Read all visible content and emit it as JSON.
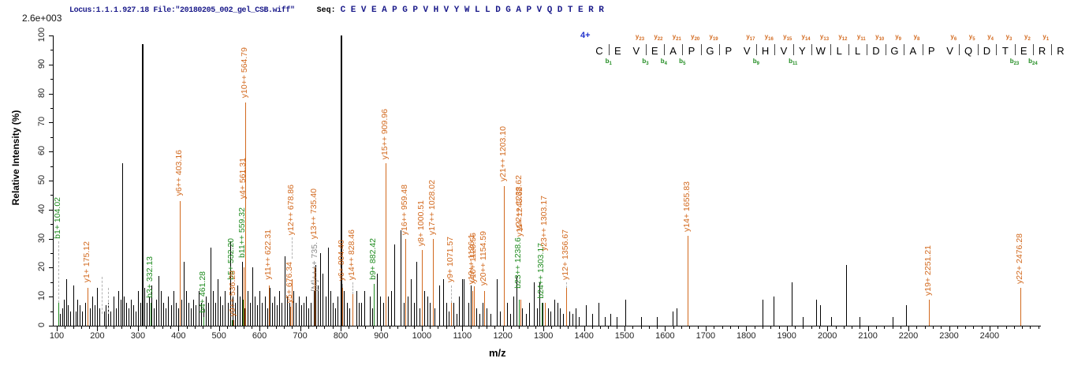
{
  "header": {
    "locus_file": "Locus:1.1.1.927.18 File:\"20180205_002_gel_CSB.wiff\"",
    "seq_label": "Seq:",
    "sequence": "CEVEAPGPVHVYWLLDGAPVQDTERR",
    "max_intensity": "2.6e+003"
  },
  "colors": {
    "y_ion": "#d2691e",
    "b_ion": "#1f8b1f",
    "precursor": "#8a8a8a",
    "peak_black": "#000000",
    "header_navy": "#1a1a8a",
    "charge_blue": "#2233cc"
  },
  "fragment_map": {
    "charge": "4+",
    "y_ions": [
      [
        "y23",
        3
      ],
      [
        "y22",
        4
      ],
      [
        "y21",
        5
      ],
      [
        "y20",
        6
      ],
      [
        "y19",
        7
      ],
      [
        "y17",
        9
      ],
      [
        "y16",
        10
      ],
      [
        "y15",
        11
      ],
      [
        "y14",
        12
      ],
      [
        "y13",
        13
      ],
      [
        "y12",
        14
      ],
      [
        "y11",
        15
      ],
      [
        "y10",
        16
      ],
      [
        "y9",
        17
      ],
      [
        "y8",
        18
      ],
      [
        "y6",
        20
      ],
      [
        "y5",
        21
      ],
      [
        "y4",
        22
      ],
      [
        "y3",
        23
      ],
      [
        "y2",
        24
      ],
      [
        "y1",
        25
      ]
    ],
    "b_ions": [
      [
        "b1",
        1
      ],
      [
        "b3",
        3
      ],
      [
        "b4",
        4
      ],
      [
        "b5",
        5
      ],
      [
        "b9",
        9
      ],
      [
        "b11",
        11
      ],
      [
        "b23",
        23
      ],
      [
        "b24",
        24
      ]
    ],
    "cleavage_gaps": [
      1,
      3,
      4,
      5,
      6,
      7,
      9,
      10,
      11,
      12,
      13,
      14,
      15,
      16,
      17,
      18,
      20,
      21,
      22,
      23,
      24,
      25
    ]
  },
  "chart_data": {
    "type": "bar",
    "subtype": "ms2-mass-spectrum",
    "title": "",
    "xlabel": "m/z",
    "ylabel": "Relative Intensity (%)",
    "xlim": [
      100,
      2527
    ],
    "ylim": [
      0,
      100
    ],
    "x_major_ticks": [
      100,
      200,
      300,
      400,
      500,
      600,
      700,
      800,
      900,
      1000,
      1100,
      1200,
      1300,
      1400,
      1500,
      1600,
      1700,
      1800,
      1900,
      2000,
      2100,
      2200,
      2300,
      2400
    ],
    "y_major_ticks": [
      0,
      10,
      20,
      30,
      40,
      50,
      60,
      70,
      80,
      90,
      100
    ],
    "base_peak_intensity": "2.6e+003",
    "labeled_peaks": [
      {
        "label": "b1+ 104.02",
        "mz": 104.02,
        "intensity": 8,
        "series": "b",
        "label_base": 29,
        "dash_from": 8
      },
      {
        "label": "y1+ 175.12",
        "mz": 175.12,
        "intensity": 13,
        "series": "y",
        "label_base": 14
      },
      {
        "label": "b3+ 332.13",
        "mz": 332.13,
        "intensity": 8,
        "series": "b",
        "label_base": 8.7
      },
      {
        "label": "y6++ 403.16",
        "mz": 403.16,
        "intensity": 43,
        "series": "y",
        "label_base": 44
      },
      {
        "label": "b4+ 461.28",
        "mz": 461.28,
        "intensity": 3,
        "series": "b",
        "label_base": 3.5
      },
      {
        "label": "b5+ 532.20",
        "mz": 532.2,
        "intensity": 2,
        "series": "b",
        "label_base": 15
      },
      {
        "label": "y9++ 536.28",
        "mz": 536.28,
        "intensity": 2,
        "series": "y",
        "label_base": 2.5
      },
      {
        "label": "b11++ 559.32",
        "mz": 559.32,
        "intensity": 9,
        "series": "b",
        "label_base": 22.5
      },
      {
        "label": "y4+ 561.31",
        "mz": 561.31,
        "intensity": 20,
        "series": "y",
        "label_base": 43
      },
      {
        "label": "y10++ 564.79",
        "mz": 564.79,
        "intensity": 77,
        "series": "y",
        "label_base": 77.8
      },
      {
        "label": "y11++ 622.31",
        "mz": 622.31,
        "intensity": 14,
        "series": "y",
        "label_base": 15
      },
      {
        "label": "y5+ 676.34",
        "mz": 676.34,
        "intensity": 6.5,
        "series": "y",
        "label_base": 7
      },
      {
        "label": "y12++ 678.86",
        "mz": 678.86,
        "intensity": 16,
        "series": "y",
        "label_base": 30.5,
        "dash_from": 23
      },
      {
        "label": "[M]++++ 735.",
        "mz": 737.0,
        "intensity": 0,
        "series": "precursor",
        "label_base": 11
      },
      {
        "label": "y13++ 735.40",
        "mz": 735.4,
        "intensity": 20,
        "series": "y",
        "label_base": 29
      },
      {
        "label": "y6+ 804.40",
        "mz": 804.4,
        "intensity": 13,
        "series": "y",
        "label_base": 14.5,
        "dash_from": 13
      },
      {
        "label": "y14++ 828.46",
        "mz": 828.46,
        "intensity": 11,
        "series": "y",
        "label_base": 15,
        "dash_from": 11
      },
      {
        "label": "b9+ 882.42",
        "mz": 882.42,
        "intensity": 14.5,
        "series": "b",
        "label_base": 15
      },
      {
        "label": "y15++ 909.96",
        "mz": 909.96,
        "intensity": 56,
        "series": "y",
        "label_base": 56.5
      },
      {
        "label": "y16++ 959.48",
        "mz": 959.48,
        "intensity": 30,
        "series": "y",
        "label_base": 30.5
      },
      {
        "label": "y8+ 1000.51",
        "mz": 1000.51,
        "intensity": 26,
        "series": "y",
        "label_base": 26.5
      },
      {
        "label": "y17++ 1028.02",
        "mz": 1028.02,
        "intensity": 30,
        "series": "y",
        "label_base": 30.5
      },
      {
        "label": "y9+ 1071.57",
        "mz": 1071.57,
        "intensity": 8,
        "series": "y",
        "label_base": 14,
        "dash_from": 8
      },
      {
        "label": "y19++ 1126.1",
        "mz": 1125.0,
        "intensity": 12,
        "series": "y",
        "label_base": 13.5
      },
      {
        "label": "y10+ 1128.56",
        "mz": 1128.56,
        "intensity": 13.5,
        "series": "y",
        "label_base": 14
      },
      {
        "label": "y20++ 1154.59",
        "mz": 1154.59,
        "intensity": 12,
        "series": "y",
        "label_base": 13
      },
      {
        "label": "y21++ 1203.10",
        "mz": 1203.1,
        "intensity": 48,
        "series": "y",
        "label_base": 48.8
      },
      {
        "label": "b23++ 1238.6",
        "mz": 1238.6,
        "intensity": 9,
        "series": "b",
        "label_base": 12
      },
      {
        "label": "y11+ 1243.62",
        "mz": 1243.62,
        "intensity": 9,
        "series": "y",
        "label_base": 30
      },
      {
        "label": "y22++ 1238.62",
        "mz": 1240.5,
        "intensity": 0,
        "series": "y",
        "label_base": 32
      },
      {
        "label": "b24++ 1303.17",
        "mz": 1296.0,
        "intensity": 8,
        "series": "b",
        "label_base": 8.5
      },
      {
        "label": "y23++ 1303.17",
        "mz": 1304.0,
        "intensity": 8,
        "series": "y",
        "label_base": 25
      },
      {
        "label": "y12+ 1356.67",
        "mz": 1356.67,
        "intensity": 13,
        "series": "y",
        "label_base": 15,
        "dash_from": 13
      },
      {
        "label": "y14+ 1655.83",
        "mz": 1655.83,
        "intensity": 31,
        "series": "y",
        "label_base": 31.5
      },
      {
        "label": "y19+ 2251.21",
        "mz": 2251.21,
        "intensity": 9,
        "series": "y",
        "label_base": 9.5
      },
      {
        "label": "y22+ 2476.28",
        "mz": 2476.28,
        "intensity": 13,
        "series": "y",
        "label_base": 13.5
      }
    ],
    "ghost_dashes": [
      {
        "mz": 210,
        "from": 4,
        "to": 17
      },
      {
        "mz": 226,
        "from": 4,
        "to": 13
      }
    ],
    "background_peaks": [
      [
        108,
        4
      ],
      [
        113,
        6
      ],
      [
        118,
        9
      ],
      [
        124,
        16
      ],
      [
        128,
        7
      ],
      [
        133,
        5
      ],
      [
        141,
        14
      ],
      [
        146,
        5
      ],
      [
        151,
        9
      ],
      [
        157,
        7
      ],
      [
        163,
        5
      ],
      [
        169,
        8
      ],
      [
        181,
        6
      ],
      [
        187,
        10
      ],
      [
        193,
        7
      ],
      [
        199,
        13
      ],
      [
        205,
        6
      ],
      [
        216,
        5
      ],
      [
        221,
        7
      ],
      [
        227,
        8
      ],
      [
        233,
        5
      ],
      [
        239,
        10
      ],
      [
        245,
        6
      ],
      [
        251,
        12
      ],
      [
        257,
        9
      ],
      [
        261,
        56
      ],
      [
        266,
        10
      ],
      [
        271,
        8
      ],
      [
        277,
        6
      ],
      [
        283,
        9
      ],
      [
        289,
        7
      ],
      [
        295,
        5
      ],
      [
        301,
        12
      ],
      [
        306,
        8
      ],
      [
        310,
        97
      ],
      [
        315,
        13
      ],
      [
        321,
        8
      ],
      [
        327,
        10
      ],
      [
        333,
        14
      ],
      [
        339,
        6
      ],
      [
        345,
        9
      ],
      [
        351,
        17
      ],
      [
        357,
        12
      ],
      [
        363,
        8
      ],
      [
        369,
        6
      ],
      [
        375,
        10
      ],
      [
        381,
        7
      ],
      [
        387,
        12
      ],
      [
        393,
        8
      ],
      [
        399,
        6
      ],
      [
        407,
        9
      ],
      [
        413,
        22
      ],
      [
        419,
        12
      ],
      [
        425,
        8
      ],
      [
        431,
        6
      ],
      [
        437,
        9
      ],
      [
        443,
        7
      ],
      [
        449,
        12
      ],
      [
        455,
        8
      ],
      [
        462,
        6
      ],
      [
        468,
        10
      ],
      [
        474,
        8
      ],
      [
        479,
        27
      ],
      [
        485,
        12
      ],
      [
        491,
        8
      ],
      [
        497,
        16
      ],
      [
        503,
        10
      ],
      [
        509,
        7
      ],
      [
        515,
        12
      ],
      [
        521,
        8
      ],
      [
        527,
        29
      ],
      [
        533,
        10
      ],
      [
        539,
        8
      ],
      [
        545,
        14
      ],
      [
        551,
        10
      ],
      [
        557,
        22
      ],
      [
        563,
        6
      ],
      [
        570,
        12
      ],
      [
        576,
        8
      ],
      [
        582,
        20
      ],
      [
        588,
        10
      ],
      [
        594,
        7
      ],
      [
        600,
        12
      ],
      [
        606,
        8
      ],
      [
        613,
        10
      ],
      [
        619,
        6
      ],
      [
        625,
        13
      ],
      [
        631,
        8
      ],
      [
        637,
        10
      ],
      [
        643,
        7
      ],
      [
        649,
        12
      ],
      [
        655,
        8
      ],
      [
        661,
        24
      ],
      [
        667,
        10
      ],
      [
        673,
        8
      ],
      [
        684,
        12
      ],
      [
        690,
        8
      ],
      [
        696,
        10
      ],
      [
        702,
        7
      ],
      [
        708,
        8
      ],
      [
        714,
        10
      ],
      [
        720,
        6
      ],
      [
        726,
        8
      ],
      [
        733,
        12
      ],
      [
        738,
        21
      ],
      [
        744,
        14
      ],
      [
        750,
        25
      ],
      [
        756,
        18
      ],
      [
        762,
        10
      ],
      [
        768,
        27
      ],
      [
        774,
        12
      ],
      [
        780,
        8
      ],
      [
        786,
        6
      ],
      [
        793,
        10
      ],
      [
        800,
        100
      ],
      [
        808,
        12
      ],
      [
        815,
        8
      ],
      [
        822,
        6
      ],
      [
        830,
        10
      ],
      [
        838,
        12
      ],
      [
        845,
        8
      ],
      [
        851,
        8
      ],
      [
        859,
        12
      ],
      [
        871,
        10
      ],
      [
        877,
        6
      ],
      [
        890,
        18
      ],
      [
        897,
        10
      ],
      [
        904,
        8
      ],
      [
        917,
        10
      ],
      [
        925,
        12
      ],
      [
        932,
        28
      ],
      [
        948,
        33
      ],
      [
        955,
        8
      ],
      [
        966,
        10
      ],
      [
        973,
        16
      ],
      [
        980,
        8
      ],
      [
        986,
        22
      ],
      [
        995,
        6
      ],
      [
        1006,
        12
      ],
      [
        1013,
        10
      ],
      [
        1020,
        8
      ],
      [
        1032,
        6
      ],
      [
        1043,
        14
      ],
      [
        1052,
        16
      ],
      [
        1060,
        8
      ],
      [
        1066,
        5
      ],
      [
        1078,
        8
      ],
      [
        1085,
        4
      ],
      [
        1092,
        10
      ],
      [
        1099,
        16
      ],
      [
        1103,
        16
      ],
      [
        1114,
        8
      ],
      [
        1121,
        14
      ],
      [
        1135,
        6
      ],
      [
        1142,
        4
      ],
      [
        1149,
        8
      ],
      [
        1160,
        6
      ],
      [
        1170,
        4
      ],
      [
        1184,
        16
      ],
      [
        1192,
        5
      ],
      [
        1210,
        8
      ],
      [
        1218,
        4
      ],
      [
        1226,
        10
      ],
      [
        1233,
        17
      ],
      [
        1247,
        6
      ],
      [
        1256,
        4
      ],
      [
        1264,
        8
      ],
      [
        1277,
        15
      ],
      [
        1285,
        6
      ],
      [
        1290,
        15
      ],
      [
        1297,
        8
      ],
      [
        1311,
        6
      ],
      [
        1318,
        5
      ],
      [
        1326,
        9
      ],
      [
        1334,
        8
      ],
      [
        1341,
        6
      ],
      [
        1349,
        4
      ],
      [
        1363,
        5
      ],
      [
        1371,
        4
      ],
      [
        1379,
        6
      ],
      [
        1387,
        3
      ],
      [
        1405,
        7
      ],
      [
        1420,
        4
      ],
      [
        1435,
        8
      ],
      [
        1451,
        3
      ],
      [
        1465,
        4
      ],
      [
        1480,
        3
      ],
      [
        1502,
        9
      ],
      [
        1540,
        3
      ],
      [
        1580,
        3
      ],
      [
        1619,
        5
      ],
      [
        1628,
        6
      ],
      [
        1840,
        9
      ],
      [
        1868,
        10
      ],
      [
        1912,
        15
      ],
      [
        1940,
        3
      ],
      [
        1972,
        9
      ],
      [
        1982,
        7
      ],
      [
        2010,
        3
      ],
      [
        2046,
        21
      ],
      [
        2080,
        3
      ],
      [
        2160,
        3
      ],
      [
        2194,
        7
      ]
    ]
  }
}
